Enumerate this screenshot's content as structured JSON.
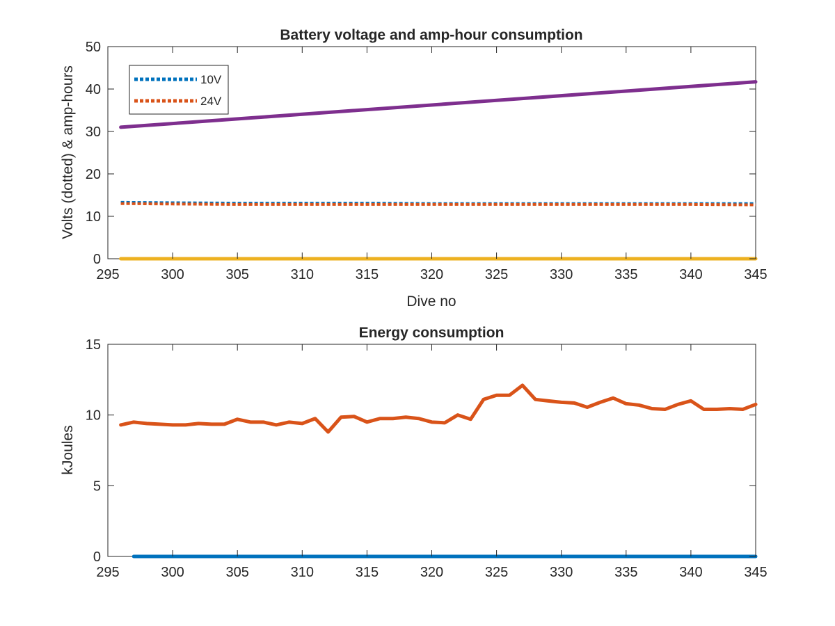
{
  "chart_data": [
    {
      "type": "line",
      "title": "Battery voltage and amp-hour consumption",
      "xlabel": "Dive no",
      "ylabel": "Volts (dotted) & amp-hours",
      "xlim": [
        295,
        345
      ],
      "ylim": [
        0,
        50
      ],
      "xticks": [
        295,
        300,
        305,
        310,
        315,
        320,
        325,
        330,
        335,
        340,
        345
      ],
      "yticks": [
        0,
        10,
        20,
        30,
        40,
        50
      ],
      "grid": false,
      "legend": "top-left",
      "series": [
        {
          "name": "10V",
          "style": "dotted",
          "color": "#0072BD",
          "x": [
            296,
            300,
            305,
            310,
            315,
            320,
            325,
            330,
            335,
            340,
            345
          ],
          "y": [
            13.3,
            13.2,
            13.1,
            13.1,
            13.1,
            13.0,
            13.0,
            13.0,
            13.0,
            13.0,
            13.0
          ]
        },
        {
          "name": "24V",
          "style": "dotted",
          "color": "#D95319",
          "x": [
            296,
            300,
            305,
            310,
            315,
            320,
            325,
            330,
            335,
            340,
            345
          ],
          "y": [
            13.0,
            12.9,
            12.8,
            12.8,
            12.8,
            12.8,
            12.8,
            12.8,
            12.8,
            12.8,
            12.7
          ]
        },
        {
          "style": "solid",
          "color": "#7E2F8E",
          "x": [
            296,
            345
          ],
          "y": [
            31.0,
            41.7
          ]
        },
        {
          "style": "solid",
          "color": "#EDB120",
          "x": [
            296,
            345
          ],
          "y": [
            0,
            0
          ]
        }
      ]
    },
    {
      "type": "line",
      "title": "Energy consumption",
      "xlabel": "",
      "ylabel": "kJoules",
      "xlim": [
        295,
        345
      ],
      "ylim": [
        0,
        15
      ],
      "xticks": [
        295,
        300,
        305,
        310,
        315,
        320,
        325,
        330,
        335,
        340,
        345
      ],
      "yticks": [
        0,
        5,
        10,
        15
      ],
      "grid": false,
      "series": [
        {
          "style": "solid",
          "color": "#D95319",
          "x": [
            296,
            297,
            298,
            299,
            300,
            301,
            302,
            303,
            304,
            305,
            306,
            307,
            308,
            309,
            310,
            311,
            312,
            313,
            314,
            315,
            316,
            317,
            318,
            319,
            320,
            321,
            322,
            323,
            324,
            325,
            326,
            327,
            328,
            329,
            330,
            331,
            332,
            333,
            334,
            335,
            336,
            337,
            338,
            339,
            340,
            341,
            342,
            343,
            344,
            345
          ],
          "y": [
            9.3,
            9.5,
            9.4,
            9.35,
            9.3,
            9.3,
            9.4,
            9.35,
            9.35,
            9.7,
            9.5,
            9.5,
            9.3,
            9.5,
            9.4,
            9.75,
            8.8,
            9.85,
            9.9,
            9.5,
            9.75,
            9.75,
            9.85,
            9.75,
            9.5,
            9.45,
            10.0,
            9.7,
            11.1,
            11.4,
            11.4,
            12.1,
            11.1,
            11.0,
            10.9,
            10.85,
            10.55,
            10.9,
            11.2,
            10.8,
            10.7,
            10.45,
            10.4,
            10.75,
            11.0,
            10.4,
            10.4,
            10.45,
            10.4,
            10.75
          ]
        },
        {
          "style": "solid",
          "color": "#0072BD",
          "x": [
            297,
            345
          ],
          "y": [
            0,
            0
          ]
        }
      ]
    }
  ]
}
